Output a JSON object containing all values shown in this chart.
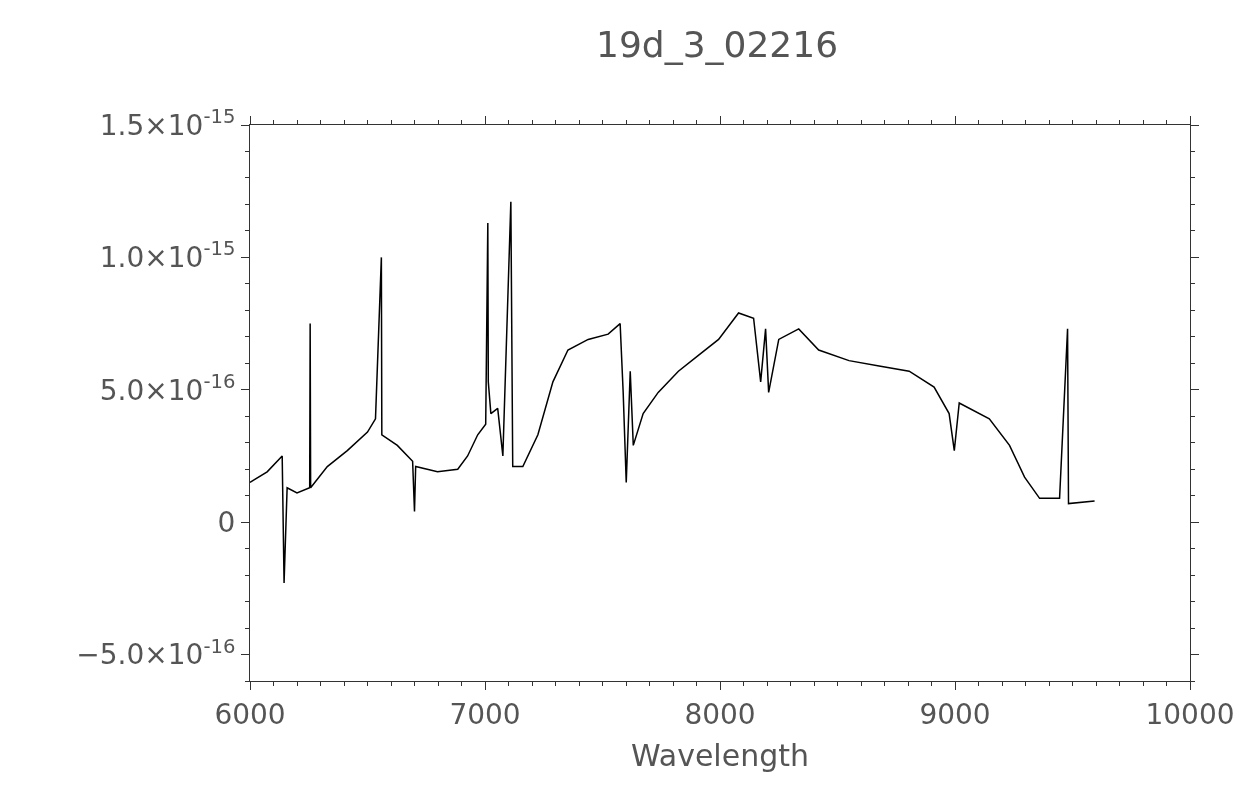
{
  "chart_data": {
    "type": "line",
    "title": "19d_3_02216",
    "xlabel": "Wavelength",
    "x": [
      6000,
      6073,
      6137,
      6145,
      6158,
      6200,
      6254,
      6256,
      6258,
      6329,
      6414,
      6500,
      6534,
      6559,
      6561,
      6627,
      6692,
      6700,
      6705,
      6798,
      6884,
      6926,
      6969,
      7003,
      7012,
      7014,
      7025,
      7054,
      7076,
      7110,
      7118,
      7161,
      7225,
      7289,
      7353,
      7439,
      7524,
      7575,
      7588,
      7601,
      7618,
      7631,
      7673,
      7737,
      7823,
      7908,
      7994,
      8079,
      8143,
      8173,
      8194,
      8207,
      8250,
      8335,
      8420,
      8549,
      8677,
      8805,
      8911,
      8975,
      8997,
      9018,
      9146,
      9232,
      9296,
      9360,
      9445,
      9479,
      9483,
      9594
    ],
    "series": [
      {
        "color": "#000000",
        "values": [
          1.5e-16,
          1.9e-16,
          2.5e-16,
          -2.3e-16,
          1.3e-16,
          1.1e-16,
          1.3e-16,
          7.5e-16,
          1.3e-16,
          2.1e-16,
          2.7e-16,
          3.4e-16,
          3.9e-16,
          1e-15,
          3.3e-16,
          2.9e-16,
          2.3e-16,
          4e-17,
          2.1e-16,
          1.9e-16,
          2e-16,
          2.5e-16,
          3.3e-16,
          3.7e-16,
          1.13e-15,
          5.3e-16,
          4.1e-16,
          4.3e-16,
          2.5e-16,
          1.21e-15,
          2.1e-16,
          2.1e-16,
          3.3e-16,
          5.3e-16,
          6.5e-16,
          6.9e-16,
          7.1e-16,
          7.5e-16,
          4.9e-16,
          1.5e-16,
          5.7e-16,
          2.9e-16,
          4.1e-16,
          4.9e-16,
          5.7e-16,
          6.3e-16,
          6.9e-16,
          7.9e-16,
          7.7e-16,
          5.3e-16,
          7.3e-16,
          4.9e-16,
          6.9e-16,
          7.3e-16,
          6.5e-16,
          6.1e-16,
          5.9e-16,
          5.7e-16,
          5.1e-16,
          4.1e-16,
          2.7e-16,
          4.5e-16,
          3.9e-16,
          2.9e-16,
          1.7e-16,
          9e-17,
          9e-17,
          7.3e-16,
          7e-17,
          8e-17
        ]
      }
    ],
    "xlim": [
      6000,
      10000
    ],
    "xticks": [
      6000,
      7000,
      8000,
      9000,
      10000
    ],
    "ylim": [
      -6e-16,
      1.5e-15
    ],
    "yticks": [
      {
        "value": 1.5e-15,
        "label": "1.5×10$^{-15}$"
      },
      {
        "value": 1e-15,
        "label": "1.0×10$^{-15}$"
      },
      {
        "value": 5e-16,
        "label": "5.0×10$^{-16}$"
      },
      0,
      {
        "value": -5e-16,
        "label": "−5.0×10$^{-16}$"
      }
    ],
    "line_style": "solid"
  }
}
